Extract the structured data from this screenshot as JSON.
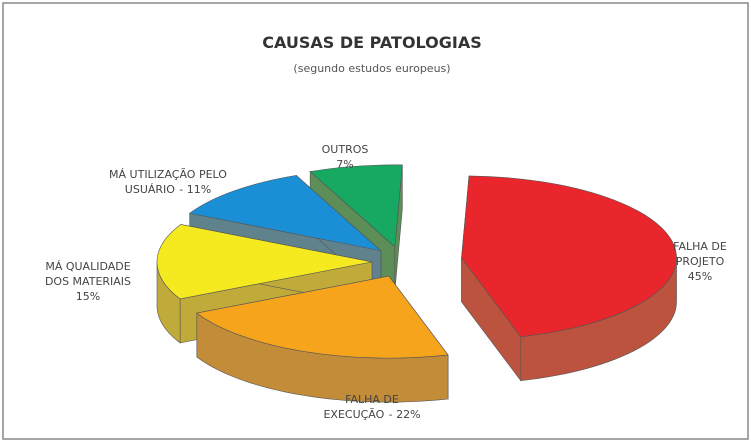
{
  "chart_data": {
    "type": "pie3d",
    "title": "CAUSAS DE PATOLOGIAS",
    "subtitle": "(segundo estudos europeus)",
    "categories": [
      [
        "FALHA DE",
        "PROJETO"
      ],
      [
        "FALHA DE",
        "EXECUÇÃO"
      ],
      [
        "MÁ QUALIDADE",
        "DOS MATERIAIS"
      ],
      [
        "MÁ UTILIZAÇÃO PELO",
        "USUÁRIO"
      ],
      [
        "OUTROS"
      ]
    ],
    "values": [
      45,
      22,
      15,
      11,
      7
    ],
    "value_labels": [
      "45%",
      "- 22%",
      "15%",
      "- 11%",
      "7%"
    ],
    "colors": [
      "#e8262b",
      "#f7a41d",
      "#f4ea1f",
      "#1b8fd6",
      "#17a862"
    ]
  }
}
